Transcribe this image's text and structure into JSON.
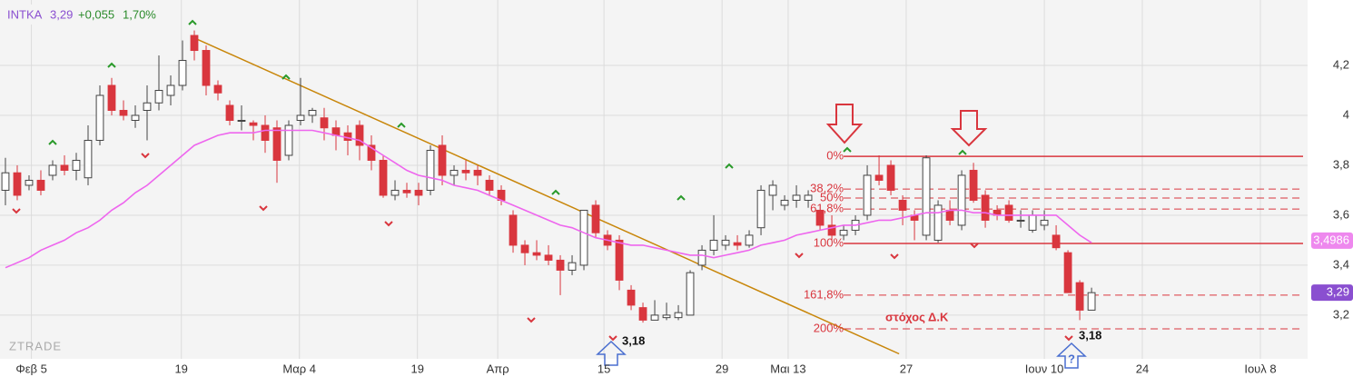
{
  "chart_data": {
    "type": "candlestick",
    "legend": {
      "symbol": "INTKA",
      "last": "3,29",
      "change": "+0,055",
      "change_pct": "1,70%"
    },
    "watermark": "ZTRADE",
    "ylim": [
      3.025,
      4.462
    ],
    "yticks": [
      {
        "value": 4.2,
        "label": "4,2"
      },
      4,
      {
        "value": 3.8,
        "label": "3,8"
      },
      {
        "value": 3.6,
        "label": "3,6"
      },
      {
        "value": 3.4,
        "label": "3,4"
      },
      {
        "value": 3.2,
        "label": "3,2"
      }
    ],
    "xlim": [
      -0.46,
      110.3
    ],
    "xticks": [
      {
        "value": 2.2,
        "label": "Φεβ 5"
      },
      {
        "value": 14.9,
        "label": "19"
      },
      {
        "value": 24.9,
        "label": "Μαρ 4"
      },
      {
        "value": 34.9,
        "label": "19"
      },
      {
        "value": 41.7,
        "label": "Απρ"
      },
      {
        "value": 50.7,
        "label": "15"
      },
      {
        "value": 60.7,
        "label": "29"
      },
      {
        "value": 66.3,
        "label": "Μαι 13"
      },
      {
        "value": 76.3,
        "label": "27"
      },
      {
        "value": 88,
        "label": "Ιουν 10"
      },
      {
        "value": 96.3,
        "label": "24"
      },
      {
        "value": 106.3,
        "label": "Ιουλ 8"
      }
    ],
    "grid": true,
    "up_color": "#ffffff",
    "down_color": "#d9363e",
    "ma_color": "#ee66ee",
    "trend_color": "#c8860a",
    "fib_color": "#d9363e",
    "candles": [
      [
        3.7,
        3.83,
        3.64,
        3.77
      ],
      [
        3.77,
        3.8,
        3.66,
        3.68
      ],
      [
        3.72,
        3.76,
        3.7,
        3.74
      ],
      [
        3.74,
        3.78,
        3.68,
        3.7
      ],
      [
        3.76,
        3.82,
        3.74,
        3.8
      ],
      [
        3.8,
        3.84,
        3.76,
        3.78
      ],
      [
        3.78,
        3.85,
        3.74,
        3.82
      ],
      [
        3.75,
        3.96,
        3.72,
        3.9
      ],
      [
        3.9,
        4.12,
        3.88,
        4.08
      ],
      [
        4.12,
        4.15,
        4.0,
        4.02
      ],
      [
        4.02,
        4.06,
        3.98,
        4.0
      ],
      [
        3.98,
        4.04,
        3.95,
        4.0
      ],
      [
        4.02,
        4.12,
        3.9,
        4.05
      ],
      [
        4.05,
        4.24,
        4.02,
        4.1
      ],
      [
        4.08,
        4.16,
        4.04,
        4.12
      ],
      [
        4.12,
        4.3,
        4.1,
        4.22
      ],
      [
        4.32,
        4.34,
        4.22,
        4.26
      ],
      [
        4.26,
        4.28,
        4.08,
        4.12
      ],
      [
        4.12,
        4.14,
        4.06,
        4.09
      ],
      [
        4.04,
        4.06,
        3.96,
        3.98
      ],
      [
        3.98,
        4.04,
        3.94,
        3.98
      ],
      [
        3.97,
        3.98,
        3.9,
        3.96
      ],
      [
        3.96,
        4.0,
        3.85,
        3.9
      ],
      [
        3.95,
        3.98,
        3.73,
        3.82
      ],
      [
        3.84,
        3.98,
        3.82,
        3.96
      ],
      [
        3.98,
        4.15,
        3.96,
        4.0
      ],
      [
        4.0,
        4.03,
        3.97,
        4.02
      ],
      [
        3.99,
        4.03,
        3.9,
        3.95
      ],
      [
        3.95,
        3.98,
        3.86,
        3.92
      ],
      [
        3.93,
        3.96,
        3.84,
        3.9
      ],
      [
        3.96,
        3.98,
        3.82,
        3.88
      ],
      [
        3.88,
        3.92,
        3.78,
        3.82
      ],
      [
        3.82,
        3.84,
        3.67,
        3.68
      ],
      [
        3.68,
        3.74,
        3.66,
        3.7
      ],
      [
        3.7,
        3.73,
        3.67,
        3.69
      ],
      [
        3.7,
        3.73,
        3.64,
        3.68
      ],
      [
        3.7,
        3.88,
        3.68,
        3.86
      ],
      [
        3.88,
        3.92,
        3.72,
        3.76
      ],
      [
        3.76,
        3.8,
        3.72,
        3.78
      ],
      [
        3.78,
        3.82,
        3.74,
        3.77
      ],
      [
        3.78,
        3.8,
        3.72,
        3.76
      ],
      [
        3.74,
        3.76,
        3.68,
        3.7
      ],
      [
        3.7,
        3.72,
        3.64,
        3.66
      ],
      [
        3.6,
        3.62,
        3.45,
        3.48
      ],
      [
        3.48,
        3.5,
        3.4,
        3.45
      ],
      [
        3.45,
        3.5,
        3.42,
        3.44
      ],
      [
        3.44,
        3.48,
        3.4,
        3.42
      ],
      [
        3.42,
        3.44,
        3.28,
        3.38
      ],
      [
        3.38,
        3.44,
        3.36,
        3.41
      ],
      [
        3.4,
        3.62,
        3.38,
        3.62
      ],
      [
        3.64,
        3.66,
        3.51,
        3.53
      ],
      [
        3.52,
        3.54,
        3.46,
        3.48
      ],
      [
        3.5,
        3.52,
        3.3,
        3.34
      ],
      [
        3.3,
        3.32,
        3.22,
        3.24
      ],
      [
        3.23,
        3.25,
        3.17,
        3.18
      ],
      [
        3.18,
        3.26,
        3.18,
        3.2
      ],
      [
        3.19,
        3.25,
        3.18,
        3.2
      ],
      [
        3.19,
        3.24,
        3.18,
        3.21
      ],
      [
        3.2,
        3.38,
        3.2,
        3.37
      ],
      [
        3.4,
        3.48,
        3.38,
        3.46
      ],
      [
        3.46,
        3.6,
        3.44,
        3.5
      ],
      [
        3.48,
        3.52,
        3.46,
        3.5
      ],
      [
        3.49,
        3.52,
        3.46,
        3.48
      ],
      [
        3.48,
        3.54,
        3.47,
        3.52
      ],
      [
        3.55,
        3.72,
        3.52,
        3.7
      ],
      [
        3.68,
        3.74,
        3.62,
        3.72
      ],
      [
        3.64,
        3.68,
        3.62,
        3.66
      ],
      [
        3.66,
        3.72,
        3.63,
        3.68
      ],
      [
        3.66,
        3.7,
        3.63,
        3.68
      ],
      [
        3.62,
        3.62,
        3.54,
        3.56
      ],
      [
        3.56,
        3.6,
        3.5,
        3.52
      ],
      [
        3.52,
        3.56,
        3.5,
        3.54
      ],
      [
        3.54,
        3.6,
        3.52,
        3.58
      ],
      [
        3.6,
        3.8,
        3.58,
        3.76
      ],
      [
        3.76,
        3.84,
        3.72,
        3.74
      ],
      [
        3.8,
        3.82,
        3.68,
        3.7
      ],
      [
        3.66,
        3.68,
        3.56,
        3.62
      ],
      [
        3.6,
        3.62,
        3.5,
        3.58
      ],
      [
        3.52,
        3.84,
        3.5,
        3.83
      ],
      [
        3.5,
        3.66,
        3.49,
        3.64
      ],
      [
        3.62,
        3.66,
        3.56,
        3.58
      ],
      [
        3.56,
        3.78,
        3.54,
        3.76
      ],
      [
        3.78,
        3.81,
        3.65,
        3.66
      ],
      [
        3.68,
        3.7,
        3.55,
        3.58
      ],
      [
        3.62,
        3.64,
        3.58,
        3.6
      ],
      [
        3.64,
        3.66,
        3.57,
        3.58
      ],
      [
        3.58,
        3.62,
        3.55,
        3.58
      ],
      [
        3.54,
        3.62,
        3.53,
        3.6
      ],
      [
        3.56,
        3.62,
        3.54,
        3.58
      ],
      [
        3.52,
        3.56,
        3.46,
        3.47
      ],
      [
        3.45,
        3.46,
        3.29,
        3.29
      ],
      [
        3.33,
        3.34,
        3.18,
        3.22
      ],
      [
        3.22,
        3.31,
        3.22,
        3.29
      ]
    ],
    "ma": [
      3.39,
      3.41,
      3.43,
      3.46,
      3.48,
      3.5,
      3.53,
      3.55,
      3.58,
      3.62,
      3.65,
      3.69,
      3.72,
      3.76,
      3.8,
      3.84,
      3.88,
      3.9,
      3.92,
      3.93,
      3.93,
      3.93,
      3.94,
      3.94,
      3.94,
      3.94,
      3.94,
      3.93,
      3.92,
      3.91,
      3.9,
      3.87,
      3.84,
      3.81,
      3.78,
      3.76,
      3.75,
      3.74,
      3.72,
      3.71,
      3.7,
      3.68,
      3.66,
      3.64,
      3.62,
      3.6,
      3.58,
      3.56,
      3.55,
      3.53,
      3.51,
      3.5,
      3.49,
      3.48,
      3.48,
      3.47,
      3.46,
      3.45,
      3.44,
      3.44,
      3.43,
      3.44,
      3.45,
      3.46,
      3.48,
      3.49,
      3.5,
      3.52,
      3.53,
      3.54,
      3.55,
      3.56,
      3.56,
      3.57,
      3.58,
      3.58,
      3.59,
      3.6,
      3.61,
      3.61,
      3.62,
      3.62,
      3.61,
      3.61,
      3.6,
      3.6,
      3.6,
      3.6,
      3.6,
      3.6,
      3.56,
      3.52,
      3.49
    ],
    "trendline": {
      "x": [
        16,
        75.7
      ],
      "y": [
        4.31,
        3.045
      ]
    },
    "fib_start": 71,
    "fib_levels": [
      {
        "label": "0%",
        "value": 3.836,
        "dashed": false
      },
      {
        "label": "38,2%",
        "value": 3.705,
        "dashed": true
      },
      {
        "label": "50%",
        "value": 3.669,
        "dashed": true
      },
      {
        "label": "61,8%",
        "value": 3.625,
        "dashed": true
      },
      {
        "label": "100%",
        "value": 3.487,
        "dashed": false
      },
      {
        "label": "161,8%",
        "value": 3.28,
        "dashed": true
      },
      {
        "label": "200%",
        "value": 3.145,
        "dashed": true
      }
    ],
    "price_tags": [
      {
        "value": 3.4986,
        "label": "3,4986",
        "color": "#ee88ee"
      },
      {
        "value": 3.29,
        "label": "3,29",
        "color": "#8a4fd0"
      }
    ],
    "annotations": {
      "low_1": "3,18",
      "low_2": "3,18",
      "target": "στόχος Δ.Κ",
      "question": "?"
    }
  }
}
